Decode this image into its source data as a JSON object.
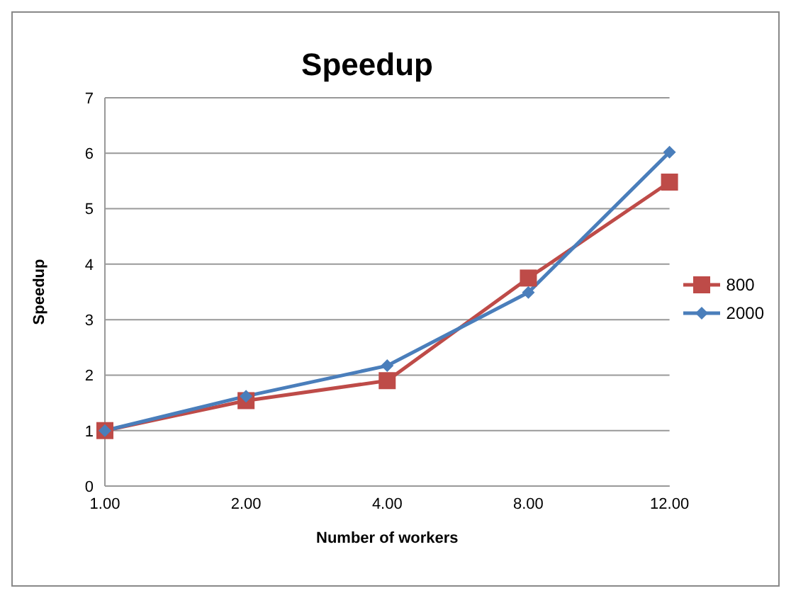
{
  "chart_data": {
    "type": "line",
    "title": "Speedup",
    "xlabel": "Number of workers",
    "ylabel": "Speedup",
    "categories": [
      "1.00",
      "2.00",
      "4.00",
      "8.00",
      "12.00"
    ],
    "series": [
      {
        "name": "800",
        "color": "#be4b48",
        "marker": "square",
        "values": [
          1.0,
          1.54,
          1.9,
          3.75,
          5.48
        ]
      },
      {
        "name": "2000",
        "color": "#4a7ebb",
        "marker": "diamond",
        "values": [
          1.0,
          1.62,
          2.17,
          3.49,
          6.02
        ]
      }
    ],
    "ylim": [
      0,
      7
    ],
    "yticks": [
      0,
      1,
      2,
      3,
      4,
      5,
      6,
      7
    ],
    "grid": "y",
    "legend": "right"
  }
}
